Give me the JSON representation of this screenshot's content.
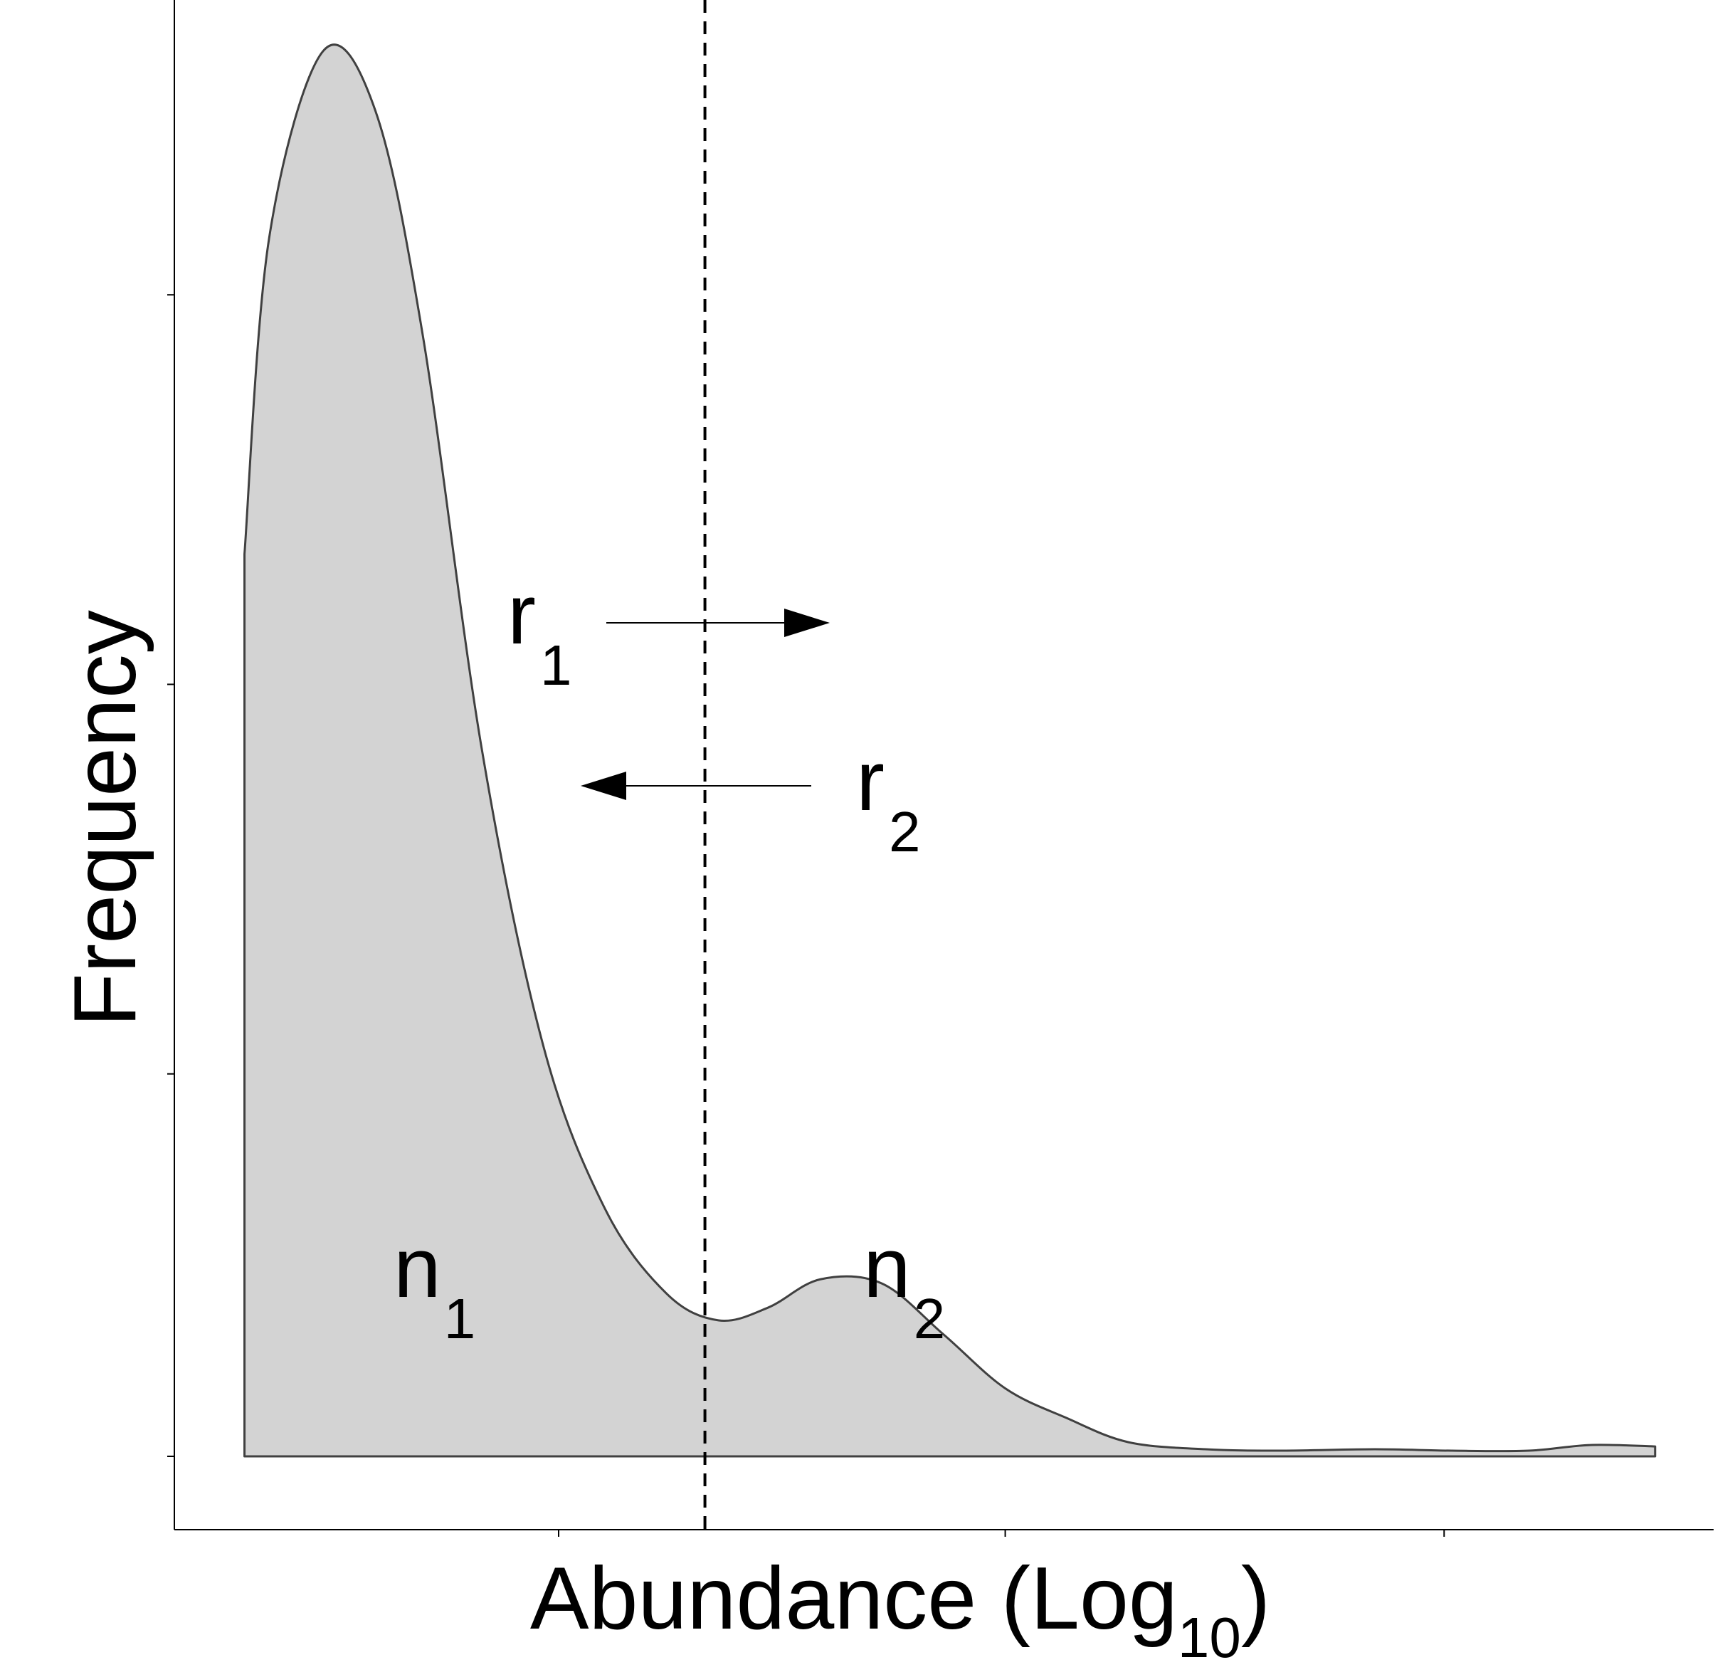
{
  "chart_data": {
    "type": "area",
    "title": "",
    "xlabel": "Abundance (Log",
    "xlabel_subscript": "10",
    "xlabel_suffix": ")",
    "ylabel": "Frequency",
    "xlim": [
      0,
      10
    ],
    "ylim": [
      0,
      10
    ],
    "grid": false,
    "fill_color": "#d3d3d3",
    "line_color": "#404040",
    "x_ticks": [
      2.5,
      5.4,
      8.25
    ],
    "y_ticks": [
      0,
      2.7,
      5.45,
      8.2
    ],
    "density_x": [
      0.46,
      0.46,
      0.62,
      0.97,
      1.31,
      1.62,
      2.0,
      2.4,
      2.8,
      3.2,
      3.54,
      3.86,
      4.2,
      4.6,
      5.0,
      5.4,
      5.8,
      6.2,
      6.7,
      7.2,
      7.8,
      8.3,
      8.8,
      9.2,
      9.62,
      9.62
    ],
    "density_y": [
      0.0,
      6.37,
      8.6,
      9.92,
      9.5,
      7.9,
      5.0,
      2.9,
      1.75,
      1.15,
      0.96,
      1.05,
      1.25,
      1.22,
      0.86,
      0.48,
      0.27,
      0.1,
      0.05,
      0.04,
      0.05,
      0.04,
      0.04,
      0.08,
      0.07,
      0.0
    ],
    "threshold": 3.45,
    "annotations": [
      {
        "label": "r",
        "sub": "1",
        "direction": "right"
      },
      {
        "label": "r",
        "sub": "2",
        "direction": "left"
      },
      {
        "label": "n",
        "sub": "1"
      },
      {
        "label": "n",
        "sub": "2"
      }
    ]
  }
}
